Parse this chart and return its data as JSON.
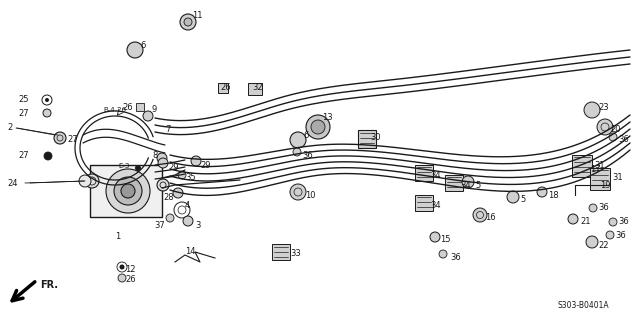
{
  "bg_color": "#ffffff",
  "fig_width": 6.4,
  "fig_height": 3.13,
  "dpi": 100,
  "diagram_code": "S303-B0401A",
  "arrow_label": "FR.",
  "lc": "#1a1a1a",
  "tc": "#1a1a1a"
}
